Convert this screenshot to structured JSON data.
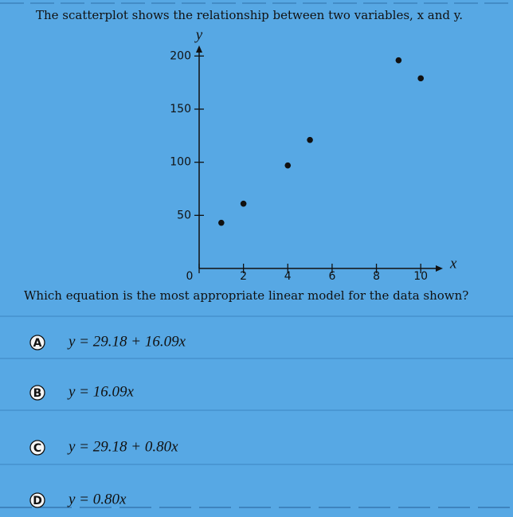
{
  "question": "The scatterplot shows the relationship between two variables, x and y.",
  "chart_data": {
    "type": "scatter",
    "x_label": "x",
    "y_label": "y",
    "x": [
      1,
      2,
      4,
      5,
      9,
      10
    ],
    "values": [
      43,
      61,
      97,
      121,
      196,
      179
    ],
    "color": "#111111",
    "xlim": [
      0,
      11
    ],
    "ylim": [
      0,
      210
    ],
    "xticks": [
      0,
      2,
      4,
      6,
      8,
      10
    ],
    "yticks": [
      50,
      100,
      150,
      200
    ],
    "grid": false
  },
  "prompt": "Which equation is the most appropriate linear model for the data shown?",
  "options": [
    {
      "letter": "A",
      "text": "y = 29.18 + 16.09x"
    },
    {
      "letter": "B",
      "text": "y = 16.09x"
    },
    {
      "letter": "C",
      "text": "y = 29.18 + 0.80x"
    },
    {
      "letter": "D",
      "text": "y = 0.80x"
    }
  ]
}
